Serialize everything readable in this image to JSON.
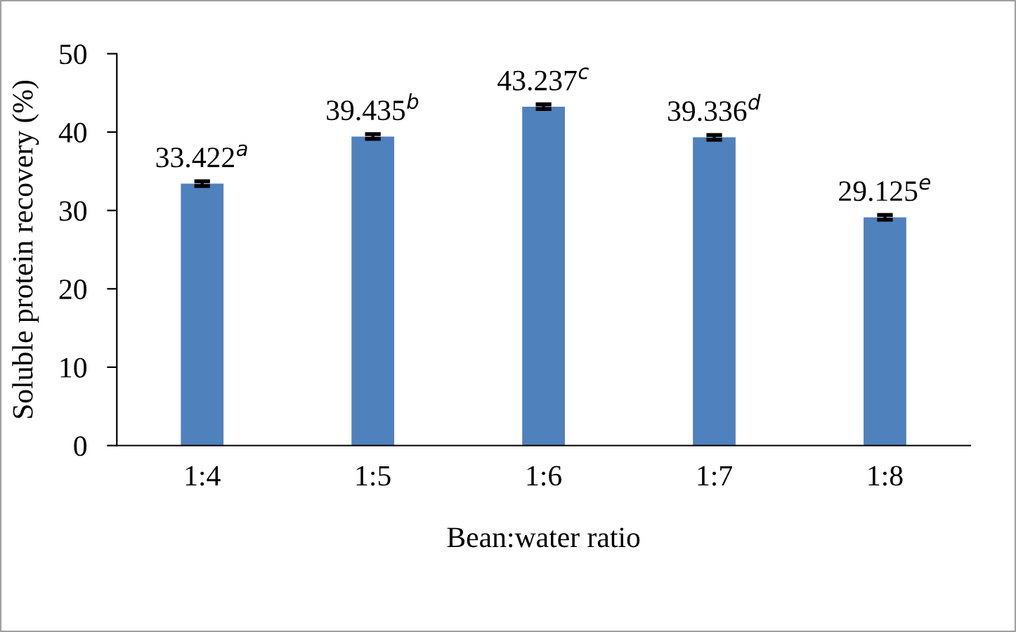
{
  "chart_data": {
    "type": "bar",
    "xlabel": "Bean:water ratio",
    "ylabel": "Soluble protein recovery (%)",
    "categories": [
      "1:4",
      "1:5",
      "1:6",
      "1:7",
      "1:8"
    ],
    "values": [
      33.422,
      39.435,
      43.237,
      39.336,
      29.125
    ],
    "errors": [
      0.3,
      0.3,
      0.3,
      0.3,
      0.3
    ],
    "value_labels": [
      "33.422$^{a}$",
      "39.435$^{b}$",
      "43.237$^{c}$",
      "39.336$^{d}$",
      "29.125$^{e}$"
    ],
    "color": "#4f81bd",
    "ylim": [
      0,
      50
    ],
    "yticks": [
      0,
      10,
      20,
      30,
      40,
      50
    ],
    "grid": false
  }
}
